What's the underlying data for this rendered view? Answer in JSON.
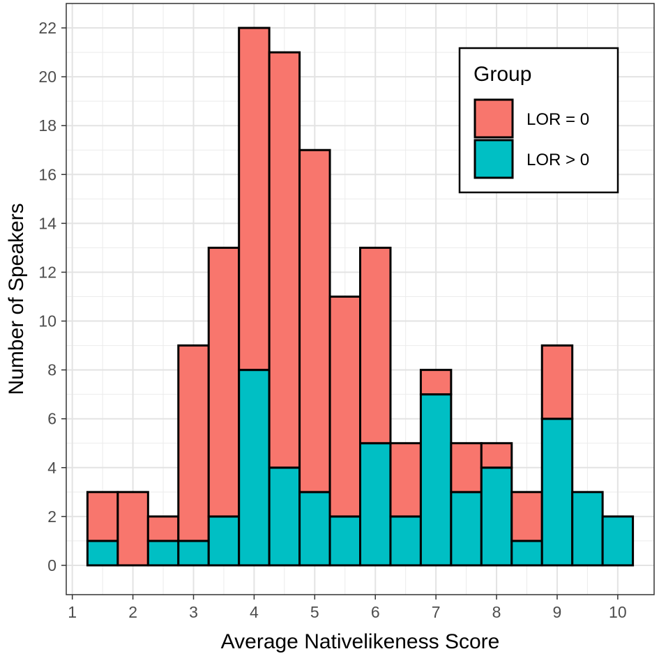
{
  "chart_data": {
    "type": "bar",
    "stacked": true,
    "xlabel": "Average Nativelikeness Score",
    "ylabel": "Number of Speakers",
    "xlim": [
      0.9,
      10.6
    ],
    "ylim": [
      -1.2,
      23
    ],
    "x_ticks": [
      1,
      2,
      3,
      4,
      5,
      6,
      7,
      8,
      9,
      10
    ],
    "x_tick_labels": [
      "1",
      "2",
      "3",
      "4",
      "5",
      "6",
      "7",
      "8",
      "9",
      "10"
    ],
    "y_ticks": [
      0,
      2,
      4,
      6,
      8,
      10,
      12,
      14,
      16,
      18,
      20,
      22
    ],
    "y_tick_labels": [
      "0",
      "2",
      "4",
      "6",
      "8",
      "10",
      "12",
      "14",
      "16",
      "18",
      "20",
      "22"
    ],
    "bin_width": 0.5,
    "bin_centers": [
      1.5,
      2.0,
      2.5,
      3.0,
      3.5,
      4.0,
      4.5,
      5.0,
      5.5,
      6.0,
      6.5,
      7.0,
      7.5,
      8.0,
      8.5,
      9.0,
      9.5,
      10.0
    ],
    "series": [
      {
        "name": "LOR > 0",
        "color": "#00BFC4",
        "values": [
          1,
          0,
          1,
          1,
          2,
          8,
          4,
          3,
          2,
          5,
          2,
          7,
          3,
          4,
          1,
          6,
          3,
          2
        ]
      },
      {
        "name": "LOR = 0",
        "color": "#F8766D",
        "values": [
          2,
          3,
          1,
          8,
          11,
          14,
          17,
          14,
          9,
          8,
          3,
          1,
          2,
          1,
          2,
          3,
          0,
          0
        ]
      }
    ],
    "grid": true,
    "legend": {
      "title": "Group",
      "placement": "top-right",
      "entries": [
        {
          "label": "LOR = 0",
          "color": "#F8766D"
        },
        {
          "label": "LOR > 0",
          "color": "#00BFC4"
        }
      ]
    }
  }
}
